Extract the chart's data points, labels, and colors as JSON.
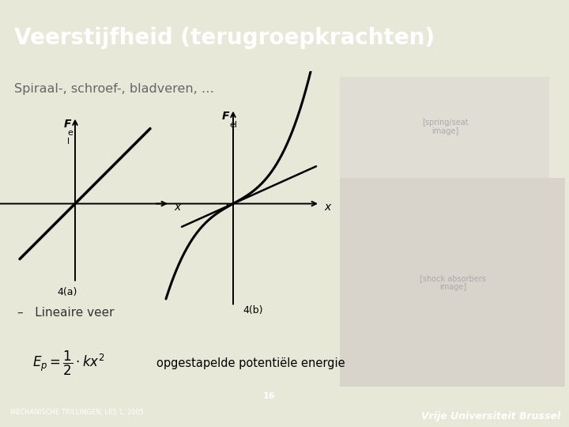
{
  "title": "Veerstijfheid (terugroepkrachten)",
  "title_bg_color": "#5d5d41",
  "title_text_color": "#ffffff",
  "slide_bg_color": "#e8e8d8",
  "content_bg_color": "#ffffff",
  "subtitle": "Spiraal-, schroef-, bladveren, …",
  "subtitle_color": "#666666",
  "graph4a_label": "4(a)",
  "graph4b_label": "4(b)",
  "bullet": "–   Lineaire veer",
  "formula_text": "opgestapelde potentiële energie",
  "footer_bg_color": "#7a7a14",
  "footer_left": "MECHANISCHE TRILLINGEN, LES 1, 2005",
  "footer_right": "Vrije Universiteit Brussel",
  "footer_text_color": "#ffffff",
  "page_number": "16",
  "page_num_bg": "#4a4a30",
  "img_right_top_color": "#c8c0b0",
  "img_right_bottom_color": "#b0a898"
}
